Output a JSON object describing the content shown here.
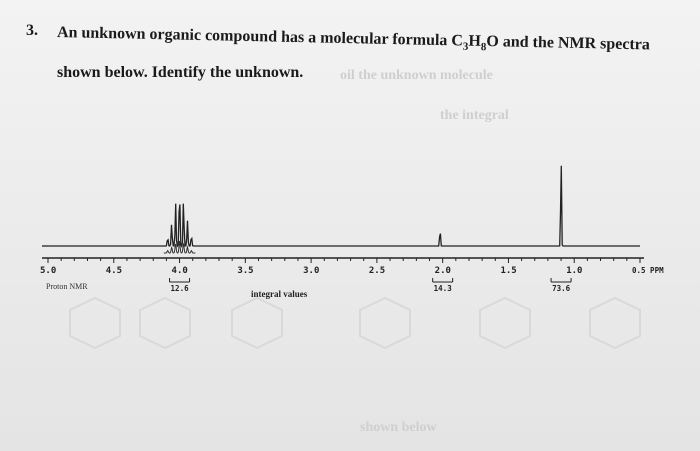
{
  "question": {
    "number": "3.",
    "line1_before": "An unknown organic compound has a molecular formula C",
    "c_sub": "3",
    "line1_mid": "H",
    "h_sub": "8",
    "line1_after": "O and the NMR spectra",
    "line2": "shown below.  Identify the unknown."
  },
  "chart_data": {
    "type": "line",
    "title": "",
    "xlabel": "Proton NMR",
    "ylabel": "",
    "x_axis_reversed": true,
    "xlim": [
      5.0,
      0.5
    ],
    "tick_labels": [
      "5.0",
      "4.5",
      "4.0",
      "3.5",
      "3.0",
      "2.5",
      "2.0",
      "1.5",
      "1.0",
      "0.5 PPM"
    ],
    "integral_label": "integral values",
    "integrals": [
      {
        "center_ppm": 4.0,
        "value": "12.6"
      },
      {
        "center_ppm": 2.0,
        "value": "14.3"
      },
      {
        "center_ppm": 1.1,
        "value": "73.6"
      }
    ],
    "peaks": [
      {
        "ppm": 4.0,
        "multiplicity": "multiplet",
        "relative_height": 0.5
      },
      {
        "ppm": 2.02,
        "multiplicity": "singlet",
        "relative_height": 0.18
      },
      {
        "ppm": 1.1,
        "multiplicity": "singlet",
        "relative_height": 0.93
      }
    ],
    "grid": false,
    "colors": {
      "trace": "#222222",
      "background": "#ececec"
    }
  },
  "ghost_text": [
    "oil the unknown molecule",
    "the integral",
    "shown below"
  ]
}
